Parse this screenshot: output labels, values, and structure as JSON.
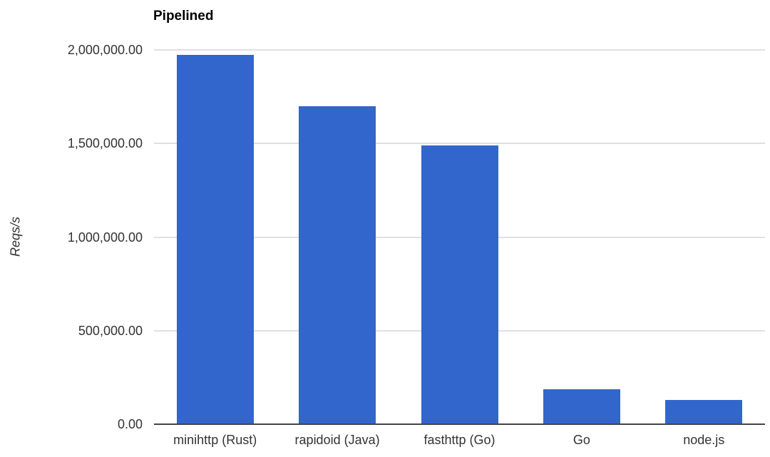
{
  "chart_data": {
    "type": "bar",
    "title": "Pipelined",
    "ylabel": "Reqs/s",
    "xlabel": "",
    "categories": [
      "minihttp (Rust)",
      "rapidoid (Java)",
      "fasthttp (Go)",
      "Go",
      "node.js"
    ],
    "values": [
      1975000,
      1700000,
      1490000,
      187000,
      130000
    ],
    "ylim": [
      0,
      2000000
    ],
    "yticks": [
      {
        "value": 0,
        "label": "0.00"
      },
      {
        "value": 500000,
        "label": "500,000.00"
      },
      {
        "value": 1000000,
        "label": "1,000,000.00"
      },
      {
        "value": 1500000,
        "label": "1,500,000.00"
      },
      {
        "value": 2000000,
        "label": "2,000,000.00"
      }
    ],
    "grid": true,
    "legend": "none",
    "colors": {
      "bar": "#3366cc",
      "gridline": "#e0e0e0",
      "axis_line": "#444444",
      "tick_text": "#333333",
      "title_text": "#000000",
      "background": "#ffffff"
    }
  }
}
